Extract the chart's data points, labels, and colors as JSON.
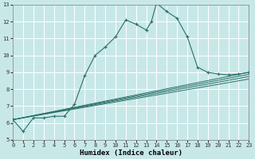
{
  "xlabel": "Humidex (Indice chaleur)",
  "bg_color": "#c8e8e8",
  "line_color": "#2a7068",
  "grid_color": "#ffffff",
  "xlim": [
    0,
    23
  ],
  "ylim": [
    5,
    13
  ],
  "xticks": [
    0,
    1,
    2,
    3,
    4,
    5,
    6,
    7,
    8,
    9,
    10,
    11,
    12,
    13,
    14,
    15,
    16,
    17,
    18,
    19,
    20,
    21,
    22,
    23
  ],
  "yticks": [
    5,
    6,
    7,
    8,
    9,
    10,
    11,
    12,
    13
  ],
  "main_series": [
    [
      0,
      6.2
    ],
    [
      1,
      5.5
    ],
    [
      2,
      6.3
    ],
    [
      3,
      6.3
    ],
    [
      4,
      6.4
    ],
    [
      5,
      6.4
    ],
    [
      6,
      7.1
    ],
    [
      7,
      8.8
    ],
    [
      8,
      10.0
    ],
    [
      9,
      10.5
    ],
    [
      10,
      11.1
    ],
    [
      11,
      12.1
    ],
    [
      12,
      11.85
    ],
    [
      13,
      11.5
    ],
    [
      13.5,
      12.0
    ],
    [
      14,
      13.1
    ],
    [
      15,
      12.6
    ],
    [
      16,
      12.2
    ],
    [
      17,
      11.1
    ],
    [
      18,
      9.3
    ],
    [
      19,
      9.0
    ],
    [
      20,
      8.9
    ],
    [
      21,
      8.85
    ],
    [
      22,
      8.9
    ],
    [
      23,
      9.0
    ]
  ],
  "straight_lines": [
    [
      [
        0,
        6.2
      ],
      [
        23,
        8.6
      ]
    ],
    [
      [
        0,
        6.2
      ],
      [
        23,
        8.75
      ]
    ],
    [
      [
        0,
        6.2
      ],
      [
        23,
        8.88
      ]
    ],
    [
      [
        0,
        6.2
      ],
      [
        23,
        9.0
      ]
    ]
  ]
}
